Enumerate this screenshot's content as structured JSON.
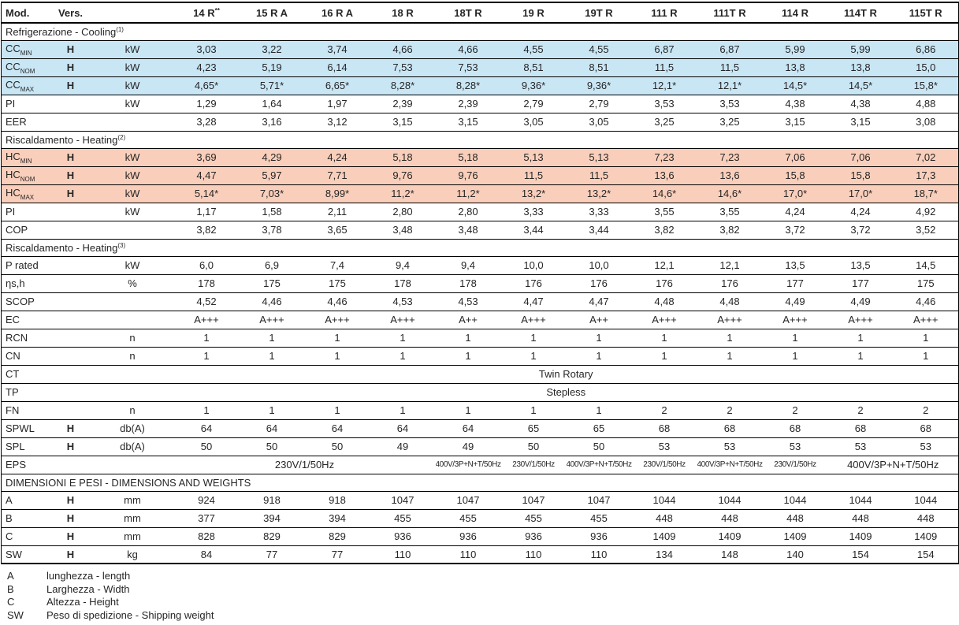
{
  "colors": {
    "cooling_row_bg": "#c9e6f5",
    "heating_row_bg": "#f9cfbb",
    "border": "#000000",
    "text": "#262626"
  },
  "table": {
    "corner": {
      "mod": "Mod.",
      "vers": "Vers."
    },
    "columns": [
      {
        "label": "14 R",
        "sup": "**"
      },
      {
        "label": "15 R A",
        "sup": ""
      },
      {
        "label": "16 R A",
        "sup": ""
      },
      {
        "label": "18 R",
        "sup": ""
      },
      {
        "label": "18T R",
        "sup": ""
      },
      {
        "label": "19 R",
        "sup": ""
      },
      {
        "label": "19T R",
        "sup": ""
      },
      {
        "label": "111 R",
        "sup": ""
      },
      {
        "label": "111T R",
        "sup": ""
      },
      {
        "label": "114 R",
        "sup": ""
      },
      {
        "label": "114T R",
        "sup": ""
      },
      {
        "label": "115T R",
        "sup": ""
      }
    ],
    "rows": [
      {
        "type": "section",
        "label": "Refrigerazione - Cooling",
        "sup": "(1)"
      },
      {
        "type": "data",
        "label": "CC",
        "sub": "MIN",
        "vers": "H",
        "unit": "kW",
        "bg": "cooling",
        "values": [
          "3,03",
          "3,22",
          "3,74",
          "4,66",
          "4,66",
          "4,55",
          "4,55",
          "6,87",
          "6,87",
          "5,99",
          "5,99",
          "6,86"
        ]
      },
      {
        "type": "data",
        "label": "CC",
        "sub": "NOM",
        "vers": "H",
        "unit": "kW",
        "bg": "cooling",
        "values": [
          "4,23",
          "5,19",
          "6,14",
          "7,53",
          "7,53",
          "8,51",
          "8,51",
          "11,5",
          "11,5",
          "13,8",
          "13,8",
          "15,0"
        ]
      },
      {
        "type": "data",
        "label": "CC",
        "sub": "MAX",
        "vers": "H",
        "unit": "kW",
        "bg": "cooling",
        "values": [
          "4,65*",
          "5,71*",
          "6,65*",
          "8,28*",
          "8,28*",
          "9,36*",
          "9,36*",
          "12,1*",
          "12,1*",
          "14,5*",
          "14,5*",
          "15,8*"
        ]
      },
      {
        "type": "data",
        "label": "PI",
        "unit": "kW",
        "values": [
          "1,29",
          "1,64",
          "1,97",
          "2,39",
          "2,39",
          "2,79",
          "2,79",
          "3,53",
          "3,53",
          "4,38",
          "4,38",
          "4,88"
        ]
      },
      {
        "type": "data",
        "label": "EER",
        "values": [
          "3,28",
          "3,16",
          "3,12",
          "3,15",
          "3,15",
          "3,05",
          "3,05",
          "3,25",
          "3,25",
          "3,15",
          "3,15",
          "3,08"
        ]
      },
      {
        "type": "section",
        "label": "Riscaldamento - Heating",
        "sup": "(2)"
      },
      {
        "type": "data",
        "label": "HC",
        "sub": "MIN",
        "vers": "H",
        "unit": "kW",
        "bg": "heating",
        "values": [
          "3,69",
          "4,29",
          "4,24",
          "5,18",
          "5,18",
          "5,13",
          "5,13",
          "7,23",
          "7,23",
          "7,06",
          "7,06",
          "7,02"
        ]
      },
      {
        "type": "data",
        "label": "HC",
        "sub": "NOM",
        "vers": "H",
        "unit": "kW",
        "bg": "heating",
        "values": [
          "4,47",
          "5,97",
          "7,71",
          "9,76",
          "9,76",
          "11,5",
          "11,5",
          "13,6",
          "13,6",
          "15,8",
          "15,8",
          "17,3"
        ]
      },
      {
        "type": "data",
        "label": "HC",
        "sub": "MAX",
        "vers": "H",
        "unit": "kW",
        "bg": "heating",
        "values": [
          "5,14*",
          "7,03*",
          "8,99*",
          "11,2*",
          "11,2*",
          "13,2*",
          "13,2*",
          "14,6*",
          "14,6*",
          "17,0*",
          "17,0*",
          "18,7*"
        ]
      },
      {
        "type": "data",
        "label": "PI",
        "unit": "kW",
        "values": [
          "1,17",
          "1,58",
          "2,11",
          "2,80",
          "2,80",
          "3,33",
          "3,33",
          "3,55",
          "3,55",
          "4,24",
          "4,24",
          "4,92"
        ]
      },
      {
        "type": "data",
        "label": "COP",
        "values": [
          "3,82",
          "3,78",
          "3,65",
          "3,48",
          "3,48",
          "3,44",
          "3,44",
          "3,82",
          "3,82",
          "3,72",
          "3,72",
          "3,52"
        ]
      },
      {
        "type": "section",
        "label": "Riscaldamento - Heating",
        "sup": "(3)"
      },
      {
        "type": "data",
        "label": "P rated",
        "unit": "kW",
        "values": [
          "6,0",
          "6,9",
          "7,4",
          "9,4",
          "9,4",
          "10,0",
          "10,0",
          "12,1",
          "12,1",
          "13,5",
          "13,5",
          "14,5"
        ]
      },
      {
        "type": "data",
        "label": "ηs,h",
        "unit": "%",
        "values": [
          "178",
          "175",
          "175",
          "178",
          "178",
          "176",
          "176",
          "176",
          "176",
          "177",
          "177",
          "175"
        ]
      },
      {
        "type": "data",
        "label": "SCOP",
        "values": [
          "4,52",
          "4,46",
          "4,46",
          "4,53",
          "4,53",
          "4,47",
          "4,47",
          "4,48",
          "4,48",
          "4,49",
          "4,49",
          "4,46"
        ]
      },
      {
        "type": "data",
        "label": "EC",
        "values": [
          "A+++",
          "A+++",
          "A+++",
          "A+++",
          "A++",
          "A+++",
          "A++",
          "A+++",
          "A+++",
          "A+++",
          "A+++",
          "A+++"
        ]
      },
      {
        "type": "data",
        "label": "RCN",
        "unit": "n",
        "values": [
          "1",
          "1",
          "1",
          "1",
          "1",
          "1",
          "1",
          "1",
          "1",
          "1",
          "1",
          "1"
        ]
      },
      {
        "type": "data",
        "label": "CN",
        "unit": "n",
        "values": [
          "1",
          "1",
          "1",
          "1",
          "1",
          "1",
          "1",
          "1",
          "1",
          "1",
          "1",
          "1"
        ]
      },
      {
        "type": "data",
        "label": "CT",
        "span_value": "Twin Rotary"
      },
      {
        "type": "data",
        "label": "TP",
        "span_value": "Stepless"
      },
      {
        "type": "data",
        "label": "FN",
        "unit": "n",
        "values": [
          "1",
          "1",
          "1",
          "1",
          "1",
          "1",
          "1",
          "2",
          "2",
          "2",
          "2",
          "2"
        ]
      },
      {
        "type": "data",
        "label": "SPWL",
        "vers": "H",
        "unit": "db(A)",
        "values": [
          "64",
          "64",
          "64",
          "64",
          "64",
          "65",
          "65",
          "68",
          "68",
          "68",
          "68",
          "68"
        ]
      },
      {
        "type": "data",
        "label": "SPL",
        "vers": "H",
        "unit": "db(A)",
        "values": [
          "50",
          "50",
          "50",
          "49",
          "49",
          "50",
          "50",
          "53",
          "53",
          "53",
          "53",
          "53"
        ]
      },
      {
        "type": "data",
        "label": "EPS",
        "cells": [
          {
            "text": "230V/1/50Hz",
            "span": 4,
            "small": false
          },
          {
            "text": "400V/3P+N+T/50Hz",
            "span": 1,
            "small": true
          },
          {
            "text": "230V/1/50Hz",
            "span": 1,
            "small": true
          },
          {
            "text": "400V/3P+N+T/50Hz",
            "span": 1,
            "small": true
          },
          {
            "text": "230V/1/50Hz",
            "span": 1,
            "small": true
          },
          {
            "text": "400V/3P+N+T/50Hz",
            "span": 1,
            "small": true
          },
          {
            "text": "230V/1/50Hz",
            "span": 1,
            "small": true
          },
          {
            "text": "400V/3P+N+T/50Hz",
            "span": 2,
            "small": false
          }
        ]
      },
      {
        "type": "section",
        "label": "DIMENSIONI E PESI - DIMENSIONS AND WEIGHTS",
        "sup": ""
      },
      {
        "type": "data",
        "label": "A",
        "vers": "H",
        "unit": "mm",
        "values": [
          "924",
          "918",
          "918",
          "1047",
          "1047",
          "1047",
          "1047",
          "1044",
          "1044",
          "1044",
          "1044",
          "1044"
        ]
      },
      {
        "type": "data",
        "label": "B",
        "vers": "H",
        "unit": "mm",
        "values": [
          "377",
          "394",
          "394",
          "455",
          "455",
          "455",
          "455",
          "448",
          "448",
          "448",
          "448",
          "448"
        ]
      },
      {
        "type": "data",
        "label": "C",
        "vers": "H",
        "unit": "mm",
        "values": [
          "828",
          "829",
          "829",
          "936",
          "936",
          "936",
          "936",
          "1409",
          "1409",
          "1409",
          "1409",
          "1409"
        ]
      },
      {
        "type": "data",
        "label": "SW",
        "vers": "H",
        "unit": "kg",
        "values": [
          "84",
          "77",
          "77",
          "110",
          "110",
          "110",
          "110",
          "134",
          "148",
          "140",
          "154",
          "154"
        ]
      }
    ]
  },
  "legend": {
    "items": [
      {
        "code": "A",
        "description": "lunghezza - length"
      },
      {
        "code": "B",
        "description": "Larghezza - Width"
      },
      {
        "code": "C",
        "description": "Altezza - Height"
      },
      {
        "code": "SW",
        "description": "Peso di spedizione - Shipping weight"
      }
    ]
  }
}
